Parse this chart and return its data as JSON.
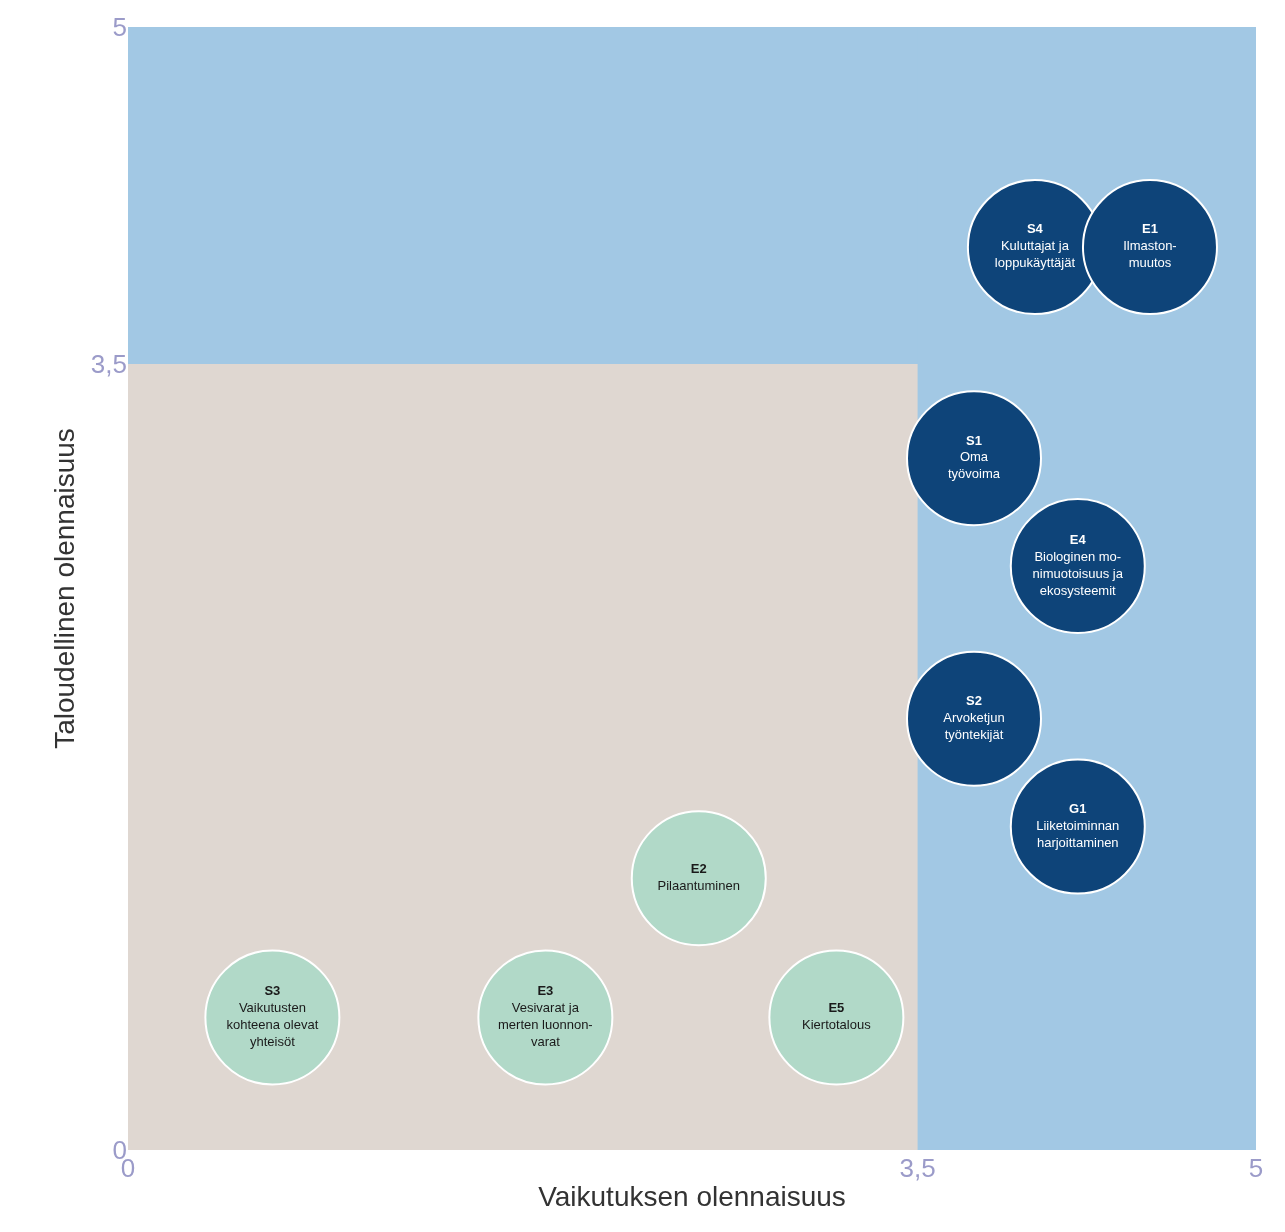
{
  "chart_data": {
    "type": "scatter",
    "xlabel": "Vaikutuksen olennaisuus",
    "ylabel": "Taloudellinen olennaisuus",
    "xlim": [
      0,
      5
    ],
    "ylim": [
      0,
      5
    ],
    "xticks": [
      0,
      {
        "value": 3.5,
        "label": "3,5"
      },
      5
    ],
    "yticks": [
      0,
      {
        "value": 3.5,
        "label": "3,5"
      },
      5
    ],
    "bands": [
      {
        "axis": "y",
        "from": 0,
        "to": 3.5,
        "label": null,
        "color": "#dfd7d1"
      },
      {
        "axis": "y",
        "from": 3.5,
        "to": 5,
        "label": null,
        "color": "#a2c8e4"
      },
      {
        "axis": "x",
        "from": 3.5,
        "to": 5,
        "label": null,
        "color": "#a2c8e4"
      }
    ],
    "series": [
      {
        "color": "#0e4479",
        "x": [
          4.02,
          4.53,
          3.75,
          4.21,
          3.75,
          4.21
        ],
        "values": [
          4.02,
          4.02,
          3.08,
          2.6,
          1.92,
          1.44
        ],
        "value_labels": [
          "S4\nKuluttajat ja\nloppukäyttäjät",
          "E1\nIlmaston-\nmuutos",
          "S1\nOma\ntyövoima",
          "E4\nBiologinen mo-\nnimuotoisuus ja\nekosysteemit",
          "S2\nArvoketjun\ntyöntekijät",
          "G1\nLiiketoiminnan\nharjoittaminen"
        ]
      },
      {
        "color": "#b1d9c8",
        "x": [
          2.53,
          0.64,
          1.85,
          3.14
        ],
        "values": [
          1.21,
          0.59,
          0.59,
          0.59
        ],
        "value_labels": [
          "E2\nPilaantuminen",
          "S3\nVaikutusten\nkohteena olevat\nyhteisöt",
          "E3\nVesivarat ja\nmerten luonnon-\nvarat",
          "E5\nKiertotalous"
        ]
      }
    ]
  }
}
